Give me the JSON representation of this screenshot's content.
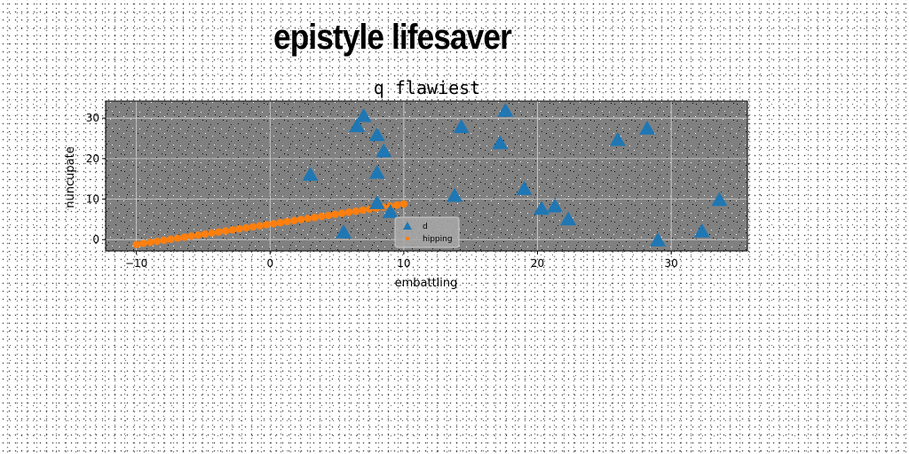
{
  "page": {
    "suptitle": "epistyle lifesaver"
  },
  "chart_data": {
    "type": "scatter",
    "title": "q flawiest",
    "xlabel": "embattling",
    "ylabel": "nuncupate",
    "xlim": [
      -12.3,
      35.7
    ],
    "ylim": [
      -2.8,
      34.2
    ],
    "xticks": [
      -10,
      0,
      10,
      20,
      30
    ],
    "yticks": [
      0,
      10,
      20,
      30
    ],
    "grid": true,
    "legend": "lower-center",
    "series": [
      {
        "name": "d",
        "kind": "scatter",
        "marker": "triangle",
        "color": "#1f77b4",
        "points": [
          [
            3.0,
            16.0
          ],
          [
            5.5,
            1.8
          ],
          [
            6.5,
            28.0
          ],
          [
            7.0,
            30.5
          ],
          [
            8.0,
            25.8
          ],
          [
            8.5,
            21.8
          ],
          [
            8.0,
            16.5
          ],
          [
            8.0,
            9.0
          ],
          [
            9.0,
            6.8
          ],
          [
            13.8,
            10.8
          ],
          [
            14.3,
            27.8
          ],
          [
            17.2,
            23.8
          ],
          [
            17.6,
            31.8
          ],
          [
            19.0,
            12.5
          ],
          [
            20.3,
            7.6
          ],
          [
            21.3,
            8.2
          ],
          [
            22.3,
            5.0
          ],
          [
            26.0,
            24.6
          ],
          [
            28.2,
            27.4
          ],
          [
            29.0,
            -0.2
          ],
          [
            32.3,
            2.0
          ],
          [
            33.6,
            9.8
          ]
        ]
      },
      {
        "name": "hipping",
        "kind": "line",
        "marker": "circle",
        "color": "#ff7f0e",
        "x0": -10,
        "x1": 10,
        "y0": -1.2,
        "y1": 8.8,
        "n": 40
      }
    ]
  }
}
